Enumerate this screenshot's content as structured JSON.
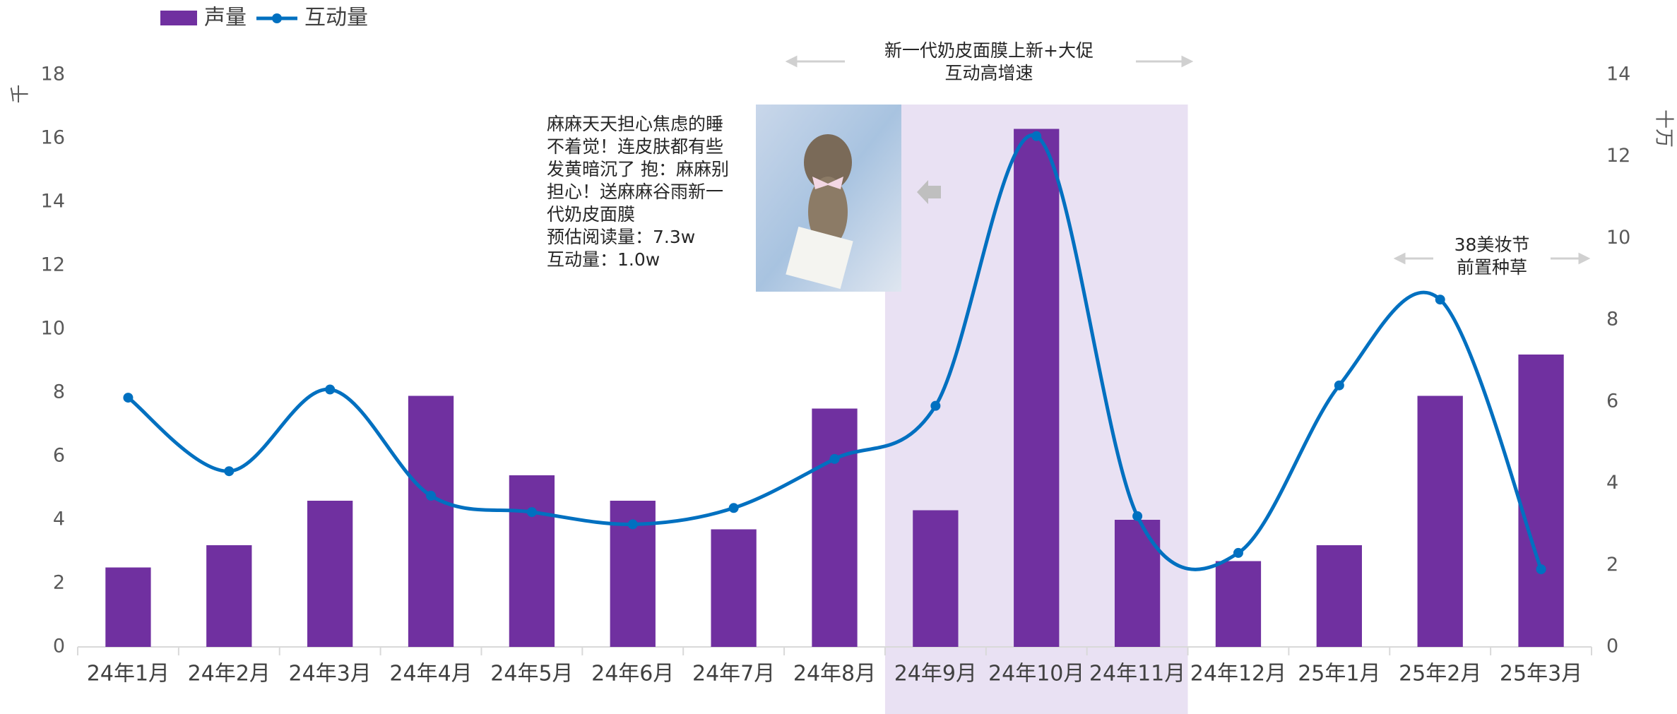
{
  "chart_data": {
    "type": "combo",
    "categories": [
      "24年1月",
      "24年2月",
      "24年3月",
      "24年4月",
      "24年5月",
      "24年6月",
      "24年7月",
      "24年8月",
      "24年9月",
      "24年10月",
      "24年11月",
      "24年12月",
      "25年1月",
      "25年2月",
      "25年3月"
    ],
    "series": [
      {
        "name": "声量",
        "type": "bar",
        "color": "#7030a0",
        "values": [
          2.5,
          3.2,
          4.6,
          7.9,
          5.4,
          4.6,
          3.7,
          7.5,
          4.3,
          16.3,
          4.0,
          2.7,
          3.2,
          7.9,
          9.2
        ]
      },
      {
        "name": "互动量",
        "type": "line",
        "axis": "y2",
        "color": "#0070c0",
        "values": [
          6.1,
          4.3,
          6.3,
          3.7,
          3.3,
          3.0,
          3.4,
          4.6,
          5.9,
          12.5,
          3.2,
          2.3,
          6.4,
          8.5,
          1.9
        ]
      }
    ],
    "ylabel": "千",
    "y2label": "十万",
    "ylim": [
      0,
      18
    ],
    "yticks": [
      0,
      2,
      4,
      6,
      8,
      10,
      12,
      14,
      16,
      18
    ],
    "y2lim": [
      0,
      14
    ],
    "y2ticks": [
      0,
      2,
      4,
      6,
      8,
      10,
      12,
      14
    ],
    "legend": "top-left",
    "highlight_range": [
      "24年9月",
      "24年11月"
    ],
    "highlight_color": "#e9e1f3",
    "annotations": [
      {
        "lines": [
          "新一代奶皮面膜上新+大促",
          "互动高增速"
        ]
      },
      {
        "lines": [
          "38美妆节",
          "前置种草"
        ]
      }
    ],
    "post_text": [
      "麻麻天天担心焦虑的睡",
      "不着觉！连皮肤都有些",
      "发黄暗沉了 抱：麻麻别",
      "担心！送麻麻谷雨新一",
      "代奶皮面膜",
      "预估阅读量：7.3w",
      "互动量：1.0w"
    ]
  }
}
